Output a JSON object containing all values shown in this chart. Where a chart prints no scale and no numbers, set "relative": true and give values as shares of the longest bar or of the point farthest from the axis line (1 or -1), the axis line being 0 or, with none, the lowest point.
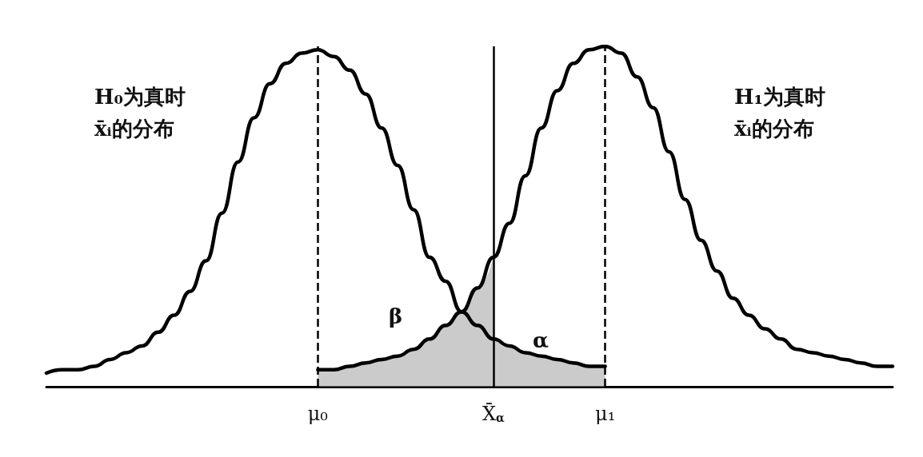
{
  "chart_data": {
    "type": "line",
    "relative": true,
    "marker": "none",
    "line_style": "solid",
    "categories": [
      null,
      null,
      null,
      null,
      null,
      null,
      null,
      null,
      null,
      null,
      null,
      null,
      null,
      null,
      null,
      null,
      null,
      "μ₀",
      null,
      null,
      null,
      null,
      null,
      null,
      null,
      null,
      null,
      null,
      "X̄$_{α}$",
      null,
      null,
      null,
      null,
      null,
      null,
      "μ₁",
      null,
      null,
      null,
      null,
      null,
      null,
      null,
      null,
      null,
      null,
      null,
      null,
      null,
      null,
      null,
      null,
      null,
      null
    ],
    "series": [
      {
        "color": "#000000",
        "values": [
          0.04,
          0.05,
          0.05,
          0.06,
          0.08,
          0.1,
          0.12,
          0.16,
          0.21,
          0.28,
          0.37,
          0.51,
          0.66,
          0.79,
          0.89,
          0.95,
          0.98,
          0.99,
          0.97,
          0.93,
          0.86,
          0.76,
          0.65,
          0.52,
          0.38,
          0.31,
          0.22,
          0.18,
          0.14,
          0.12,
          0.1,
          0.09,
          0.08,
          0.07,
          0.06,
          0.06,
          null,
          null,
          null,
          null,
          null,
          null,
          null,
          null,
          null,
          null,
          null,
          null,
          null,
          null,
          null,
          null,
          null,
          null
        ]
      },
      {
        "color": "#000000",
        "values": [
          null,
          null,
          null,
          null,
          null,
          null,
          null,
          null,
          null,
          null,
          null,
          null,
          null,
          null,
          null,
          null,
          null,
          0.05,
          0.05,
          0.06,
          0.07,
          0.08,
          0.09,
          0.11,
          0.14,
          0.18,
          0.22,
          0.29,
          0.38,
          0.48,
          0.62,
          0.76,
          0.87,
          0.95,
          0.99,
          1.0,
          0.98,
          0.91,
          0.82,
          0.69,
          0.55,
          0.43,
          0.34,
          0.26,
          0.21,
          0.17,
          0.14,
          0.11,
          0.1,
          0.09,
          0.08,
          0.07,
          0.06,
          0.06
        ]
      },
      {
        "type": "area",
        "color": "#a0a0a0",
        "values": [
          null,
          null,
          null,
          null,
          null,
          null,
          null,
          null,
          null,
          null,
          null,
          null,
          null,
          null,
          null,
          null,
          null,
          0.05,
          0.05,
          0.06,
          0.07,
          0.08,
          0.09,
          0.11,
          0.14,
          0.18,
          0.22,
          0.29,
          0.38,
          null,
          null,
          null,
          null,
          null,
          null,
          null,
          null,
          null,
          null,
          null,
          null,
          null,
          null,
          null,
          null,
          null,
          null,
          null,
          null,
          null,
          null,
          null,
          null,
          null
        ]
      },
      {
        "type": "area",
        "color": "#a0a0a0",
        "values": [
          null,
          null,
          null,
          null,
          null,
          null,
          null,
          null,
          null,
          null,
          null,
          null,
          null,
          null,
          null,
          null,
          null,
          null,
          null,
          null,
          null,
          null,
          null,
          null,
          null,
          null,
          null,
          null,
          0.14,
          0.12,
          0.1,
          0.09,
          0.08,
          0.07,
          0.06,
          0.06,
          null,
          null,
          null,
          null,
          null,
          null,
          null,
          null,
          null,
          null,
          null,
          null,
          null,
          null,
          null,
          null,
          null,
          null
        ]
      }
    ],
    "ref_lines": [
      {
        "axis": "x",
        "value": "μ₀",
        "line_style": "dashed"
      },
      {
        "axis": "x",
        "value": "X̄$_{α}$",
        "line_style": "solid"
      },
      {
        "axis": "x",
        "value": "μ₁",
        "line_style": "dashed"
      }
    ],
    "annotations": [
      "H₀为真时",
      "x̄ᵢ的分布",
      "H₁为真时",
      "x̄ᵢ的分布",
      "β",
      "α"
    ]
  }
}
